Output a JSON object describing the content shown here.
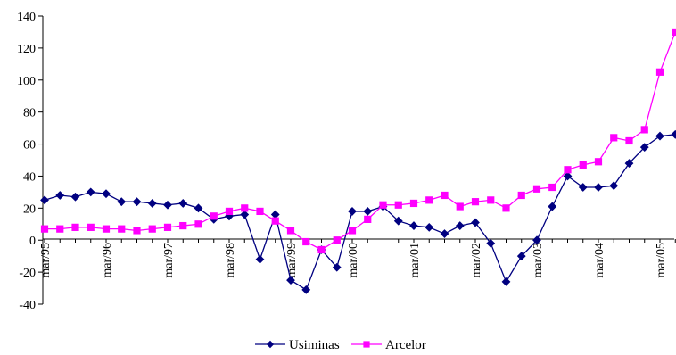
{
  "chart_data": {
    "type": "line",
    "title": "",
    "xlabel": "",
    "ylabel": "",
    "ylim": [
      -40,
      140
    ],
    "yticks": [
      -40,
      -20,
      0,
      20,
      40,
      60,
      80,
      100,
      120,
      140
    ],
    "grid": false,
    "legend_position": "bottom",
    "x_tick_labels": [
      "mar/95",
      "mar/96",
      "mar/97",
      "mar/98",
      "mar/99",
      "mar/00",
      "mar/01",
      "mar/02",
      "mar/03",
      "mar/04",
      "mar/05"
    ],
    "x": [
      "mar/95",
      "jun/95",
      "sep/95",
      "dec/95",
      "mar/96",
      "jun/96",
      "sep/96",
      "dec/96",
      "mar/97",
      "jun/97",
      "sep/97",
      "dec/97",
      "mar/98",
      "jun/98",
      "sep/98",
      "dec/98",
      "mar/99",
      "jun/99",
      "sep/99",
      "dec/99",
      "mar/00",
      "jun/00",
      "sep/00",
      "dec/00",
      "mar/01",
      "jun/01",
      "sep/01",
      "dec/01",
      "mar/02",
      "jun/02",
      "sep/02",
      "dec/02",
      "mar/03",
      "jun/03",
      "sep/03",
      "dec/03",
      "mar/04",
      "jun/04",
      "sep/04",
      "dec/04",
      "mar/05",
      "jun/05"
    ],
    "series": [
      {
        "name": "Usiminas",
        "color": "#000080",
        "marker": "diamond",
        "values": [
          25,
          28,
          27,
          30,
          29,
          24,
          24,
          23,
          22,
          23,
          20,
          13,
          15,
          16,
          -12,
          16,
          -25,
          -31,
          -6,
          -17,
          18,
          18,
          21,
          12,
          9,
          8,
          4,
          9,
          11,
          -2,
          -26,
          -10,
          0,
          21,
          40,
          33,
          33,
          34,
          48,
          58,
          65,
          66
        ]
      },
      {
        "name": "Arcelor",
        "color": "#FF00FF",
        "marker": "square",
        "values": [
          7,
          7,
          8,
          8,
          7,
          7,
          6,
          7,
          8,
          9,
          10,
          15,
          18,
          20,
          18,
          12,
          6,
          -1,
          -6,
          0,
          6,
          13,
          22,
          22,
          23,
          25,
          28,
          21,
          24,
          25,
          20,
          28,
          32,
          33,
          44,
          47,
          49,
          64,
          62,
          69,
          105,
          130
        ]
      }
    ]
  }
}
